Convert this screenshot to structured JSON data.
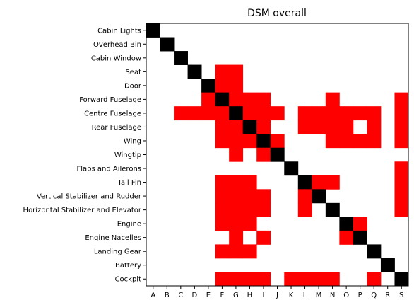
{
  "chart_data": {
    "type": "heatmap",
    "title": "DSM overall",
    "row_labels": [
      "Cabin Lights",
      "Overhead Bin",
      "Cabin Window",
      "Seat",
      "Door",
      "Forward Fuselage",
      "Centre Fuselage",
      "Rear Fuselage",
      "Wing",
      "Wingtip",
      "Flaps and Ailerons",
      "Tail Fin",
      "Vertical Stabilizer and Rudder",
      "Horizontal Stabilizer and Elevator",
      "Engine",
      "Engine Nacelles",
      "Landing Gear",
      "Battery",
      "Cockpit"
    ],
    "col_labels": [
      "A",
      "B",
      "C",
      "D",
      "E",
      "F",
      "G",
      "H",
      "I",
      "J",
      "K",
      "L",
      "M",
      "N",
      "O",
      "P",
      "Q",
      "R",
      "S"
    ],
    "cell_values": {
      "diagonal": "self",
      "marked": "dependency",
      "blank": "none"
    },
    "matrix": [
      [
        2,
        0,
        0,
        0,
        0,
        0,
        0,
        0,
        0,
        0,
        0,
        0,
        0,
        0,
        0,
        0,
        0,
        0,
        0
      ],
      [
        0,
        2,
        0,
        0,
        0,
        0,
        0,
        0,
        0,
        0,
        0,
        0,
        0,
        0,
        0,
        0,
        0,
        0,
        0
      ],
      [
        0,
        0,
        2,
        0,
        0,
        0,
        0,
        0,
        0,
        0,
        0,
        0,
        0,
        0,
        0,
        0,
        0,
        0,
        0
      ],
      [
        0,
        0,
        0,
        2,
        0,
        1,
        1,
        0,
        0,
        0,
        0,
        0,
        0,
        0,
        0,
        0,
        0,
        0,
        0
      ],
      [
        0,
        0,
        0,
        0,
        2,
        1,
        1,
        0,
        0,
        0,
        0,
        0,
        0,
        0,
        0,
        0,
        0,
        0,
        0
      ],
      [
        0,
        0,
        0,
        0,
        1,
        2,
        1,
        1,
        1,
        0,
        0,
        0,
        0,
        1,
        0,
        0,
        0,
        0,
        1
      ],
      [
        0,
        0,
        1,
        1,
        1,
        1,
        2,
        1,
        1,
        1,
        0,
        1,
        1,
        1,
        1,
        1,
        1,
        0,
        1
      ],
      [
        0,
        0,
        0,
        0,
        0,
        1,
        1,
        2,
        1,
        0,
        0,
        1,
        1,
        1,
        1,
        0,
        1,
        0,
        1
      ],
      [
        0,
        0,
        0,
        0,
        0,
        1,
        1,
        1,
        2,
        1,
        0,
        0,
        0,
        1,
        1,
        1,
        1,
        0,
        1
      ],
      [
        0,
        0,
        0,
        0,
        0,
        0,
        1,
        0,
        1,
        2,
        0,
        0,
        0,
        0,
        0,
        0,
        0,
        0,
        0
      ],
      [
        0,
        0,
        0,
        0,
        0,
        0,
        0,
        0,
        0,
        0,
        2,
        0,
        0,
        0,
        0,
        0,
        0,
        0,
        1
      ],
      [
        0,
        0,
        0,
        0,
        0,
        1,
        1,
        1,
        0,
        0,
        0,
        2,
        1,
        1,
        0,
        0,
        0,
        0,
        1
      ],
      [
        0,
        0,
        0,
        0,
        0,
        1,
        1,
        1,
        1,
        0,
        0,
        1,
        2,
        0,
        0,
        0,
        0,
        0,
        1
      ],
      [
        0,
        0,
        0,
        0,
        0,
        1,
        1,
        1,
        1,
        0,
        0,
        1,
        0,
        2,
        0,
        0,
        0,
        0,
        1
      ],
      [
        0,
        0,
        0,
        0,
        0,
        1,
        1,
        1,
        0,
        0,
        0,
        0,
        0,
        0,
        2,
        1,
        0,
        0,
        0
      ],
      [
        0,
        0,
        0,
        0,
        0,
        0,
        1,
        0,
        1,
        0,
        0,
        0,
        0,
        0,
        1,
        2,
        0,
        0,
        0
      ],
      [
        0,
        0,
        0,
        0,
        0,
        1,
        1,
        1,
        0,
        0,
        0,
        0,
        0,
        0,
        0,
        0,
        2,
        0,
        0
      ],
      [
        0,
        0,
        0,
        0,
        0,
        0,
        0,
        0,
        0,
        0,
        0,
        0,
        0,
        0,
        0,
        0,
        0,
        2,
        0
      ],
      [
        0,
        0,
        0,
        0,
        0,
        1,
        1,
        1,
        1,
        0,
        1,
        1,
        1,
        1,
        0,
        0,
        1,
        0,
        2
      ]
    ],
    "colors": {
      "diagonal": "#000000",
      "dependency": "#ff0000",
      "empty": "#ffffff"
    }
  }
}
